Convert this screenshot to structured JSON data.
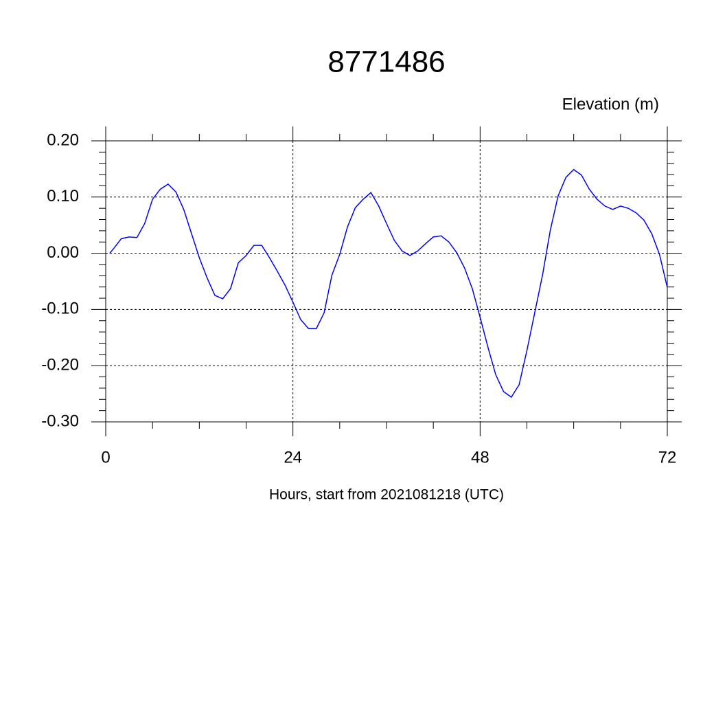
{
  "chart_data": {
    "type": "line",
    "title": "8771486",
    "ylabel": "Elevation (m)",
    "xlabel": "Hours, start from 2021081218 (UTC)",
    "x": [
      0.5,
      1,
      2,
      3,
      4,
      5,
      6,
      7,
      8,
      9,
      10,
      11,
      12,
      13,
      14,
      15,
      16,
      17,
      18,
      19,
      20,
      21,
      22,
      23,
      24,
      25,
      26,
      27,
      28,
      29,
      30,
      31,
      32,
      33,
      34,
      35,
      36,
      37,
      38,
      39,
      40,
      41,
      42,
      43,
      44,
      45,
      46,
      47,
      48,
      49,
      50,
      51,
      52,
      53,
      54,
      55,
      56,
      57,
      58,
      59,
      60,
      61,
      62,
      63,
      64,
      65,
      66,
      67,
      68,
      69,
      70,
      71,
      72
    ],
    "series": [
      {
        "color": "#0000ff",
        "values": [
          0.0,
          0.008,
          0.026,
          0.029,
          0.028,
          0.053,
          0.096,
          0.114,
          0.123,
          0.109,
          0.078,
          0.035,
          -0.008,
          -0.044,
          -0.075,
          -0.081,
          -0.063,
          -0.017,
          -0.004,
          0.014,
          0.014,
          -0.008,
          -0.032,
          -0.057,
          -0.087,
          -0.118,
          -0.134,
          -0.134,
          -0.106,
          -0.039,
          -0.002,
          0.047,
          0.081,
          0.096,
          0.108,
          0.084,
          0.053,
          0.023,
          0.004,
          -0.004,
          0.004,
          0.017,
          0.029,
          0.031,
          0.02,
          0.001,
          -0.026,
          -0.063,
          -0.114,
          -0.167,
          -0.216,
          -0.246,
          -0.256,
          -0.234,
          -0.173,
          -0.106,
          -0.039,
          0.041,
          0.102,
          0.135,
          0.149,
          0.139,
          0.114,
          0.096,
          0.084,
          0.078,
          0.084,
          0.08,
          0.072,
          0.059,
          0.035,
          -0.002,
          -0.061
        ]
      }
    ],
    "xlim": [
      0,
      72
    ],
    "xticks": [
      0,
      24,
      48,
      72
    ],
    "ylim": [
      -0.3,
      0.2
    ],
    "yticks": [
      {
        "value": 0.2,
        "label": "0.20"
      },
      {
        "value": 0.1,
        "label": "0.10"
      },
      {
        "value": 0,
        "label": "0.00"
      },
      {
        "value": -0.1,
        "label": "-0.10"
      },
      {
        "value": -0.2,
        "label": "-0.20"
      },
      {
        "value": -0.3,
        "label": "-0.30"
      }
    ],
    "grid": true
  }
}
